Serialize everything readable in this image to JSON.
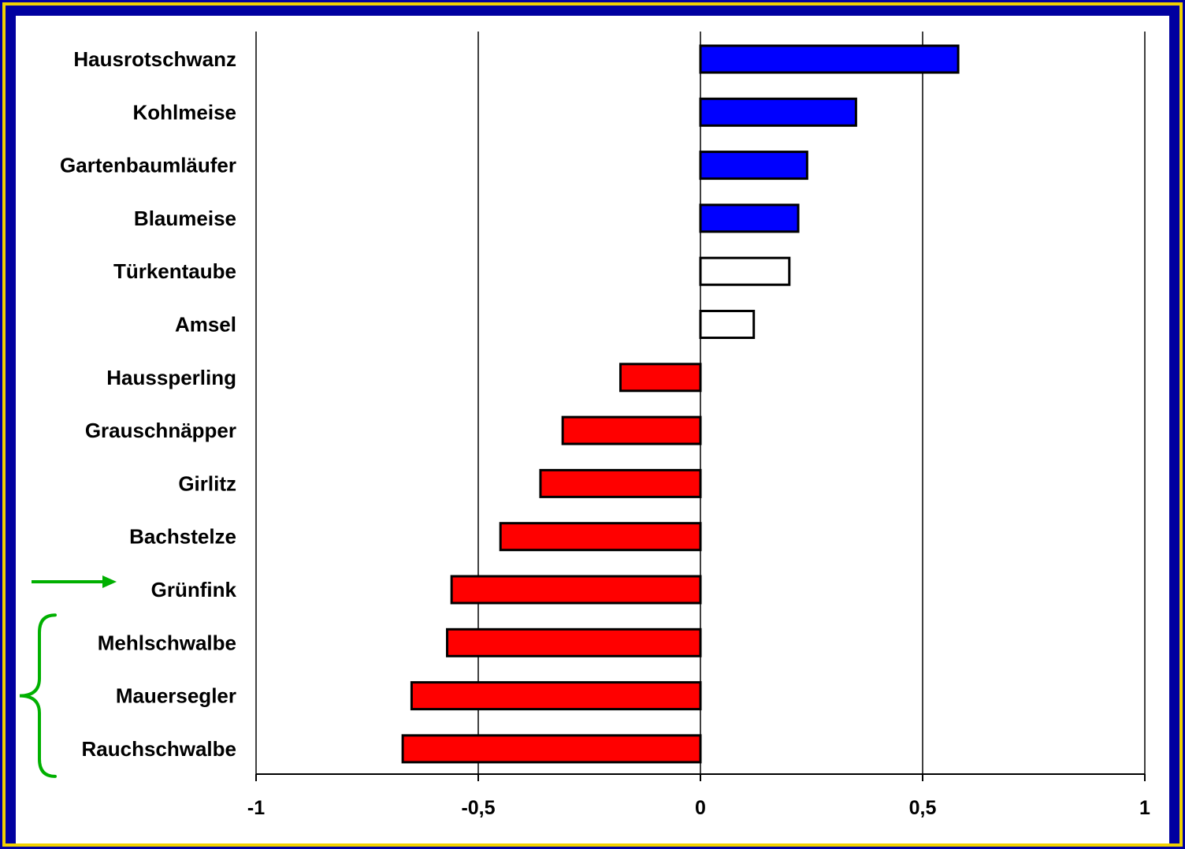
{
  "chart_data": {
    "type": "bar",
    "orientation": "horizontal",
    "title": "",
    "xlabel": "",
    "ylabel": "",
    "xlim": [
      -1,
      1
    ],
    "x_ticks": [
      {
        "value": -1,
        "label": "-1"
      },
      {
        "value": -0.5,
        "label": "-0,5"
      },
      {
        "value": 0,
        "label": "0"
      },
      {
        "value": 0.5,
        "label": "0,5"
      },
      {
        "value": 1,
        "label": "1"
      }
    ],
    "grid": "vertical major gridlines",
    "legend": "none",
    "categories": [
      "Hausrotschwanz",
      "Kohlmeise",
      "Gartenbaumläufer",
      "Blaumeise",
      "Türkentaube",
      "Amsel",
      "Haussperling",
      "Grauschnäpper",
      "Girlitz",
      "Bachstelze",
      "Grünfink",
      "Mehlschwalbe",
      "Mauersegler",
      "Rauchschwalbe"
    ],
    "values": [
      0.58,
      0.35,
      0.24,
      0.22,
      0.2,
      0.12,
      -0.18,
      -0.31,
      -0.36,
      -0.45,
      -0.56,
      -0.57,
      -0.65,
      -0.67
    ],
    "bar_colors": [
      "#0000ff",
      "#0000ff",
      "#0000ff",
      "#0000ff",
      "#ffffff",
      "#ffffff",
      "#ff0000",
      "#ff0000",
      "#ff0000",
      "#ff0000",
      "#ff0000",
      "#ff0000",
      "#ff0000",
      "#ff0000"
    ],
    "annotations": [
      {
        "type": "arrow",
        "target": "Grünfink",
        "color": "#00b000"
      },
      {
        "type": "curly-brace",
        "targets": [
          "Mehlschwalbe",
          "Mauersegler",
          "Rauchschwalbe"
        ],
        "color": "#00b000"
      }
    ]
  },
  "colors": {
    "background": "#0000a0",
    "border": "#f2d200",
    "plot": "#ffffff",
    "annotation": "#00b000"
  }
}
